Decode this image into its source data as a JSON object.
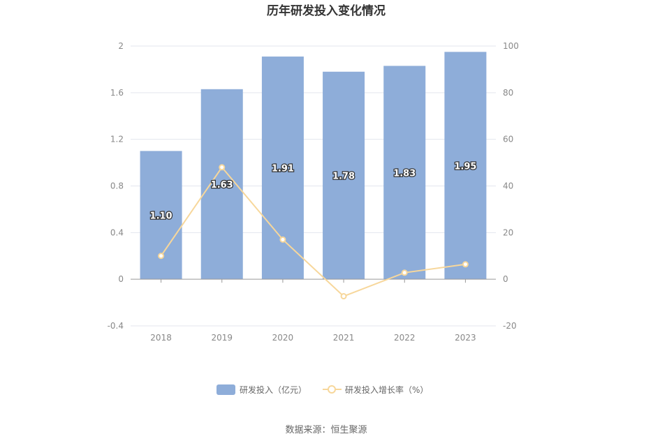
{
  "chart_data": {
    "type": "bar",
    "title": "历年研发投入变化情况",
    "categories": [
      "2018",
      "2019",
      "2020",
      "2021",
      "2022",
      "2023"
    ],
    "series": [
      {
        "name": "研发投入（亿元）",
        "type": "bar",
        "axis": "left",
        "values": [
          1.1,
          1.63,
          1.91,
          1.78,
          1.83,
          1.95
        ],
        "labels": [
          "1.10",
          "1.63",
          "1.91",
          "1.78",
          "1.83",
          "1.95"
        ],
        "color": "#8eadd9"
      },
      {
        "name": "研发投入增长率（%）",
        "type": "line",
        "axis": "right",
        "values": [
          10,
          48,
          17,
          -7.3,
          2.8,
          6.4
        ],
        "color": "#f7d79b"
      }
    ],
    "y_left": {
      "ylim": [
        -0.4,
        2
      ],
      "ticks": [
        "-0.4",
        "0",
        "0.4",
        "0.8",
        "1.2",
        "1.6",
        "2"
      ]
    },
    "y_right": {
      "ylim": [
        -20,
        100
      ],
      "ticks": [
        "-20",
        "0",
        "20",
        "40",
        "60",
        "80",
        "100"
      ]
    },
    "grid": true,
    "legend_position": "bottom-center"
  },
  "source": "数据来源：恒生聚源"
}
